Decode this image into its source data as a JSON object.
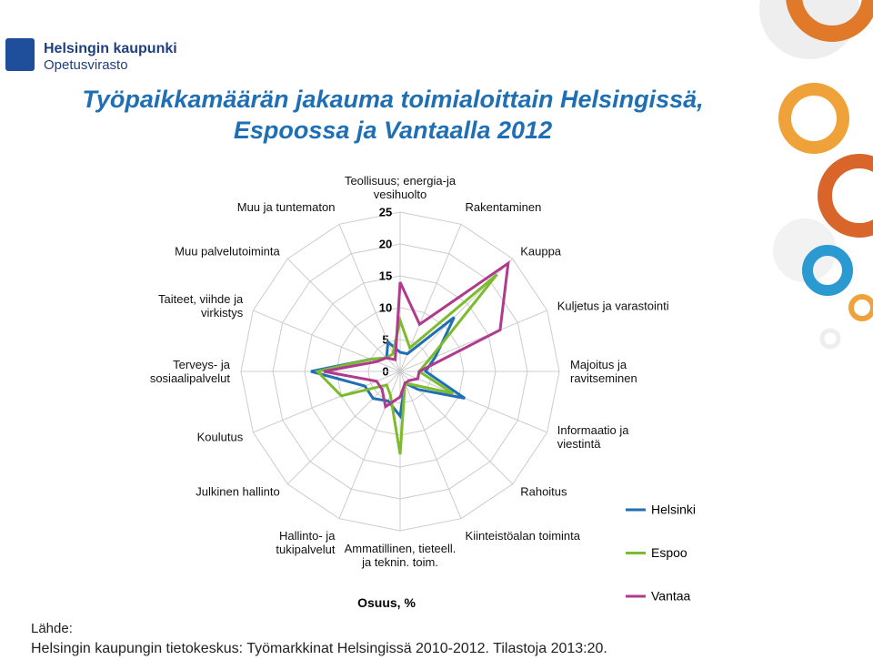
{
  "header": {
    "org": "Helsingin kaupunki",
    "dept": "Opetusvirasto"
  },
  "chart_data": {
    "type": "radar",
    "title": "Työpaikkamäärän jakauma toimialoittain Helsingissä, Espoossa ja Vantaalla 2012",
    "axis_label": "Osuus, %",
    "categories": [
      "Teollisuus; energia-ja vesihuolto",
      "Rakentaminen",
      "Kauppa",
      "Kuljetus ja varastointi",
      "Majoitus ja ravitseminen",
      "Informaatio ja viestintä",
      "Rahoitus",
      "Kiinteistöalan toiminta",
      "Ammatillinen, tieteell. ja teknin. toim.",
      "Hallinto- ja tukipalvelut",
      "Julkinen hallinto",
      "Koulutus",
      "Terveys- ja sosiaalipalvelut",
      "Taiteet, viihde ja virkistys",
      "Muu palvelutoiminta",
      "Muu ja tuntematon"
    ],
    "series": [
      {
        "name": "Helsinki",
        "color": "#1f6fb5",
        "values": [
          3,
          3,
          12,
          6,
          4,
          11,
          4,
          2,
          7,
          5,
          6,
          6,
          14,
          5,
          3,
          5
        ]
      },
      {
        "name": "Espoo",
        "color": "#7dbb2e",
        "values": [
          8,
          4,
          21.5,
          5,
          3,
          9,
          3,
          2,
          13,
          4,
          3,
          10,
          13,
          5,
          3,
          3
        ]
      },
      {
        "name": "Vantaa",
        "color": "#b03a8e",
        "values": [
          14,
          8,
          24,
          17,
          3,
          3,
          2,
          2,
          4,
          6,
          4,
          4,
          12,
          4,
          3,
          2
        ]
      }
    ],
    "rlim": [
      0,
      25
    ],
    "rticks": [
      0,
      5,
      10,
      15,
      20,
      25
    ],
    "grid": true
  },
  "footer": {
    "source_label": "Lähde:",
    "source": "Helsingin kaupungin tietokeskus: Työmarkkinat Helsingissä 2010-2012. Tilastoja 2013:20."
  }
}
